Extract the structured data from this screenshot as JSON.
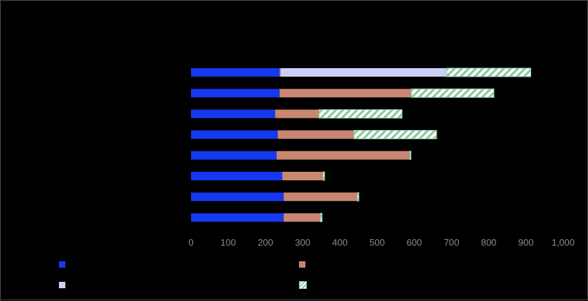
{
  "chart_data": {
    "type": "bar",
    "orientation": "horizontal",
    "stacked": true,
    "title": "",
    "xlabel": "",
    "ylabel": "",
    "categories": [
      "",
      "",
      "",
      "",
      "",
      "",
      "",
      ""
    ],
    "xlim": [
      0,
      1000
    ],
    "xticks": [
      "0",
      "100",
      "200",
      "300",
      "400",
      "500",
      "600",
      "700",
      "800",
      "900",
      "1,000"
    ],
    "grid": false,
    "legend_position": "bottom",
    "series": [
      {
        "color": "#1538f0",
        "pattern": "solid",
        "values": [
          238,
          238,
          226,
          233,
          230,
          245,
          249,
          249
        ]
      },
      {
        "color": "#c98670",
        "pattern": "solid",
        "values": [
          3,
          354,
          118,
          205,
          358,
          110,
          198,
          99
        ]
      },
      {
        "color": "#ccd0f4",
        "pattern": "solid",
        "values": [
          446,
          0,
          0,
          0,
          0,
          0,
          0,
          0
        ]
      },
      {
        "color": "#8cc8a0",
        "pattern": "hatch",
        "values": [
          226,
          222,
          223,
          222,
          3,
          4,
          4,
          4
        ]
      }
    ]
  }
}
